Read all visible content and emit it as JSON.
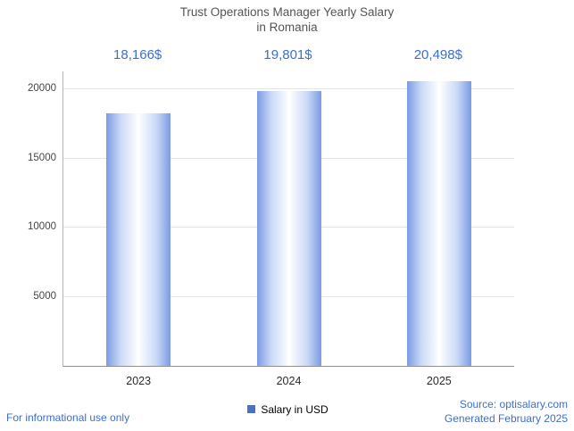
{
  "title": {
    "line1": "Trust Operations Manager Yearly Salary",
    "line2": "in Romania"
  },
  "chart_data": {
    "type": "bar",
    "title": "Trust Operations Manager Yearly Salary in Romania",
    "categories": [
      "2023",
      "2024",
      "2025"
    ],
    "values": [
      18166,
      19801,
      20498
    ],
    "value_labels": [
      "18,166$",
      "19,801$",
      "20,498$"
    ],
    "series": [
      {
        "name": "Salary in USD",
        "values": [
          18166,
          19801,
          20498
        ]
      }
    ],
    "yticks": [
      5000,
      10000,
      15000,
      20000
    ],
    "ylim": [
      0,
      21200
    ],
    "xlabel": "",
    "ylabel": "",
    "grid": true,
    "legend_position": "bottom",
    "colors": {
      "bar_edge": "#7b9be4",
      "bar_mid": "#c9d9f6",
      "bar_center": "#ffffff",
      "legend_swatch": "#4a72c4",
      "value_label": "#3b6fd1",
      "title": "#545454",
      "gridline": "#e4e4e4",
      "tick_label": "#444444"
    }
  },
  "legend": {
    "label": "Salary in USD"
  },
  "footer": {
    "left": "For informational use only",
    "source": "Source: optisalary.com",
    "generated": "Generated February 2025",
    "link_color": "#3b6fd1"
  }
}
